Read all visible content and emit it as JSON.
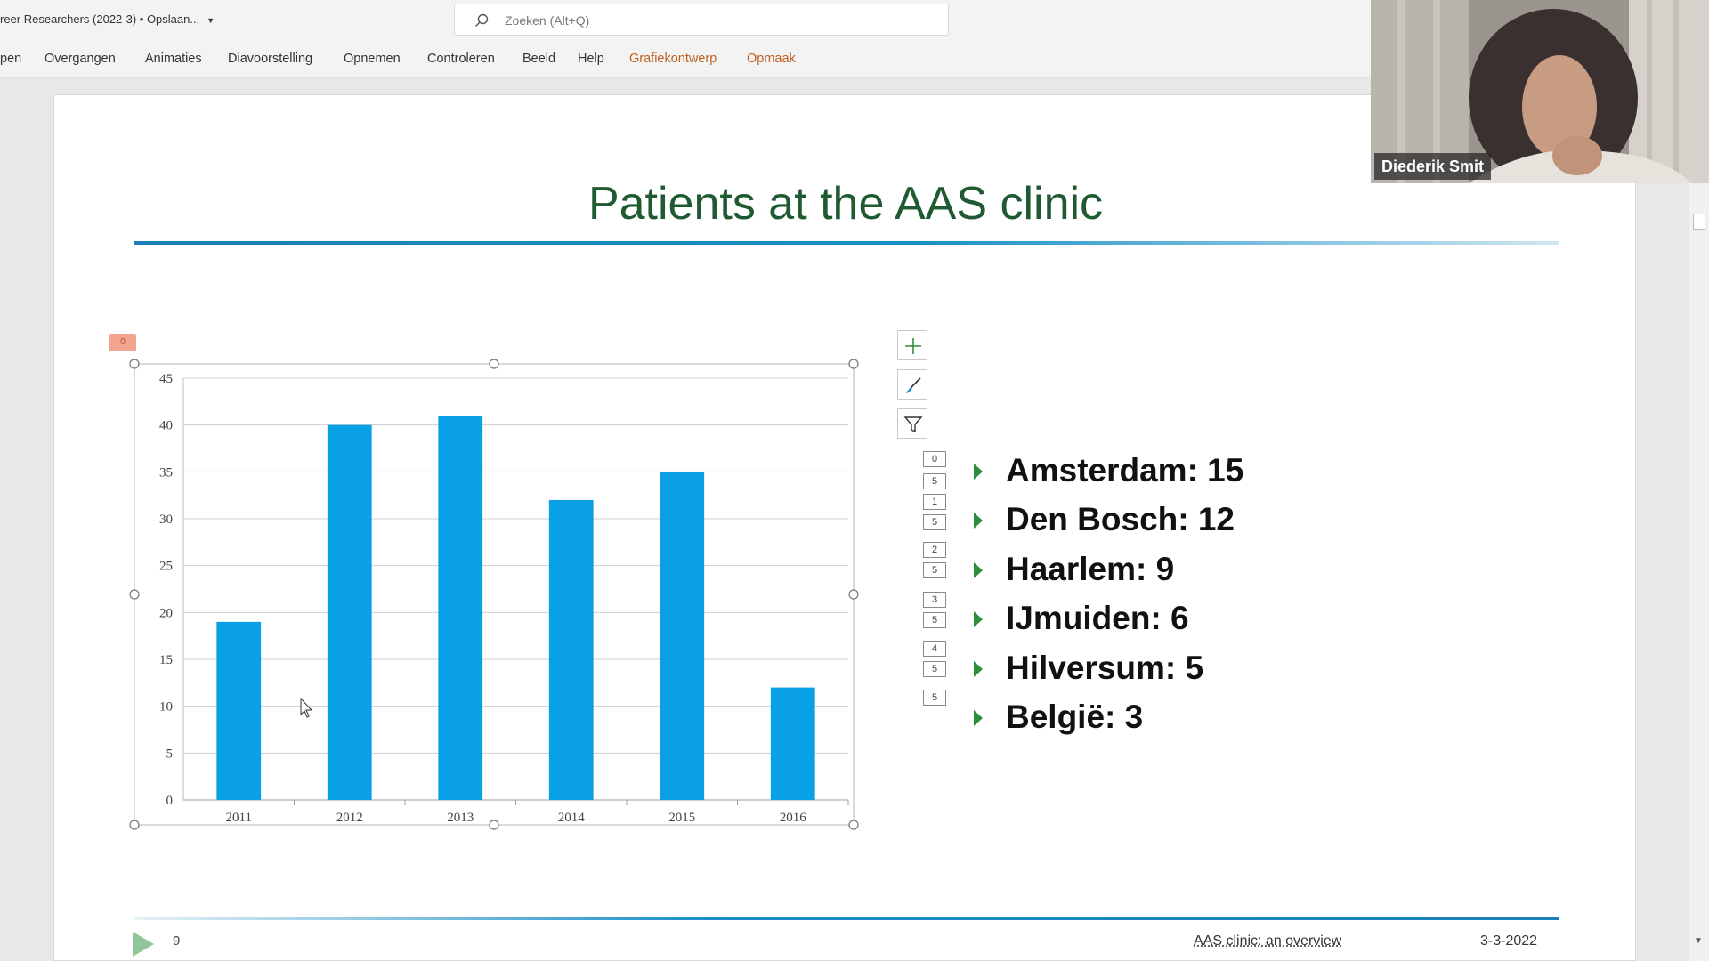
{
  "app": {
    "doc_title": "reer Researchers (2022-3) • Opslaan...",
    "search_placeholder": "Zoeken (Alt+Q)"
  },
  "ribbon": {
    "tabs": [
      "pen",
      "Overgangen",
      "Animaties",
      "Diavoorstelling",
      "Opnemen",
      "Controleren",
      "Beeld",
      "Help"
    ],
    "context_tabs": [
      "Grafiekontwerp",
      "Opmaak"
    ]
  },
  "slide": {
    "title": "Patients at the AAS clinic",
    "number": "9",
    "footer_text": "AAS clinic: an overview",
    "footer_date": "3-3-2022",
    "selection_tag": "0",
    "bullets": [
      "Amsterdam: 15",
      "Den Bosch: 12",
      "Haarlem: 9",
      "IJmuiden: 6",
      "Hilversum: 5",
      "België: 3"
    ],
    "anim_tags": [
      "0",
      "5",
      "1",
      "5",
      "2",
      "5",
      "3",
      "5",
      "4",
      "5",
      "5"
    ]
  },
  "webcam": {
    "participant_name": "Diederik Smit"
  },
  "chart_data": {
    "type": "bar",
    "categories": [
      "2011",
      "2012",
      "2013",
      "2014",
      "2015",
      "2016"
    ],
    "values": [
      19,
      40,
      41,
      32,
      35,
      12
    ],
    "title": "",
    "xlabel": "",
    "ylabel": "",
    "ylim": [
      0,
      45
    ],
    "yticks": [
      0,
      5,
      10,
      15,
      20,
      25,
      30,
      35,
      40,
      45
    ],
    "grid": true,
    "bar_color": "#0aa0e6"
  },
  "colors": {
    "title": "#1f5a33",
    "context_tab": "#c0601e",
    "bullet_arrow": "#2a8f3a"
  }
}
